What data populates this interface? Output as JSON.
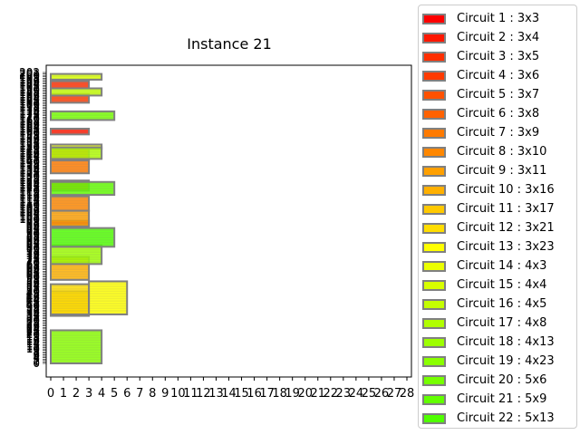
{
  "chart_data": {
    "type": "bar",
    "title": "Instance 21",
    "xlim": [
      0,
      28
    ],
    "ylim": [
      0,
      202
    ],
    "x_ticks": [
      0,
      1,
      2,
      3,
      4,
      5,
      6,
      7,
      8,
      9,
      10,
      11,
      12,
      13,
      14,
      15,
      16,
      17,
      18,
      19,
      20,
      21,
      22,
      23,
      24,
      25,
      26,
      27,
      28
    ],
    "legend_position": "outside-right",
    "edge_color": "#808080",
    "circuits": [
      {
        "label": "Circuit 1 : 3x3",
        "w": 3,
        "h": 3,
        "color": "#ff0000",
        "x": 0,
        "y": 96
      },
      {
        "label": "Circuit 2 : 3x4",
        "w": 3,
        "h": 4,
        "color": "#ff1700",
        "x": 0,
        "y": 159
      },
      {
        "label": "Circuit 3 : 3x5",
        "w": 3,
        "h": 5,
        "color": "#ff2e00",
        "x": 0,
        "y": 191
      },
      {
        "label": "Circuit 4 : 3x6",
        "w": 3,
        "h": 6,
        "color": "#ff3a00",
        "x": 0,
        "y": 181
      },
      {
        "label": "Circuit 5 : 3x7",
        "w": 3,
        "h": 7,
        "color": "#ff5100",
        "x": 0,
        "y": 120
      },
      {
        "label": "Circuit 6 : 3x8",
        "w": 3,
        "h": 8,
        "color": "#ff6100",
        "x": 0,
        "y": 141
      },
      {
        "label": "Circuit 7 : 3x9",
        "w": 3,
        "h": 9,
        "color": "#ff7a00",
        "x": 0,
        "y": 132
      },
      {
        "label": "Circuit 8 : 3x10",
        "w": 3,
        "h": 10,
        "color": "#ff8700",
        "x": 0,
        "y": 106
      },
      {
        "label": "Circuit 9 : 3x11",
        "w": 3,
        "h": 11,
        "color": "#ffa000",
        "x": 0,
        "y": 95
      },
      {
        "label": "Circuit 10 : 3x16",
        "w": 3,
        "h": 16,
        "color": "#ffb000",
        "x": 0,
        "y": 58
      },
      {
        "label": "Circuit 11 : 3x17",
        "w": 3,
        "h": 17,
        "color": "#ffc900",
        "x": 0,
        "y": 33
      },
      {
        "label": "Circuit 12 : 3x21",
        "w": 3,
        "h": 21,
        "color": "#ffdd00",
        "x": 0,
        "y": 34
      },
      {
        "label": "Circuit 13 : 3x23",
        "w": 3,
        "h": 23,
        "color": "#ffff00",
        "x": 3,
        "y": 34
      },
      {
        "label": "Circuit 14 : 4x3",
        "w": 4,
        "h": 3,
        "color": "#ebff00",
        "x": 0,
        "y": 149
      },
      {
        "label": "Circuit 15 : 4x4",
        "w": 4,
        "h": 4,
        "color": "#d8ff00",
        "x": 0,
        "y": 197
      },
      {
        "label": "Circuit 16 : 4x5",
        "w": 4,
        "h": 5,
        "color": "#c4ff00",
        "x": 0,
        "y": 186
      },
      {
        "label": "Circuit 17 : 4x8",
        "w": 4,
        "h": 8,
        "color": "#b1ff00",
        "x": 0,
        "y": 142
      },
      {
        "label": "Circuit 18 : 4x13",
        "w": 4,
        "h": 13,
        "color": "#9dff00",
        "x": 0,
        "y": 69
      },
      {
        "label": "Circuit 19 : 4x23",
        "w": 4,
        "h": 23,
        "color": "#8aff00",
        "x": 0,
        "y": 0
      },
      {
        "label": "Circuit 20 : 5x6",
        "w": 5,
        "h": 6,
        "color": "#76ff00",
        "x": 0,
        "y": 169
      },
      {
        "label": "Circuit 21 : 5x9",
        "w": 5,
        "h": 9,
        "color": "#62ff00",
        "x": 0,
        "y": 117
      },
      {
        "label": "Circuit 22 : 5x13",
        "w": 5,
        "h": 13,
        "color": "#4fff00",
        "x": 0,
        "y": 81
      }
    ]
  }
}
